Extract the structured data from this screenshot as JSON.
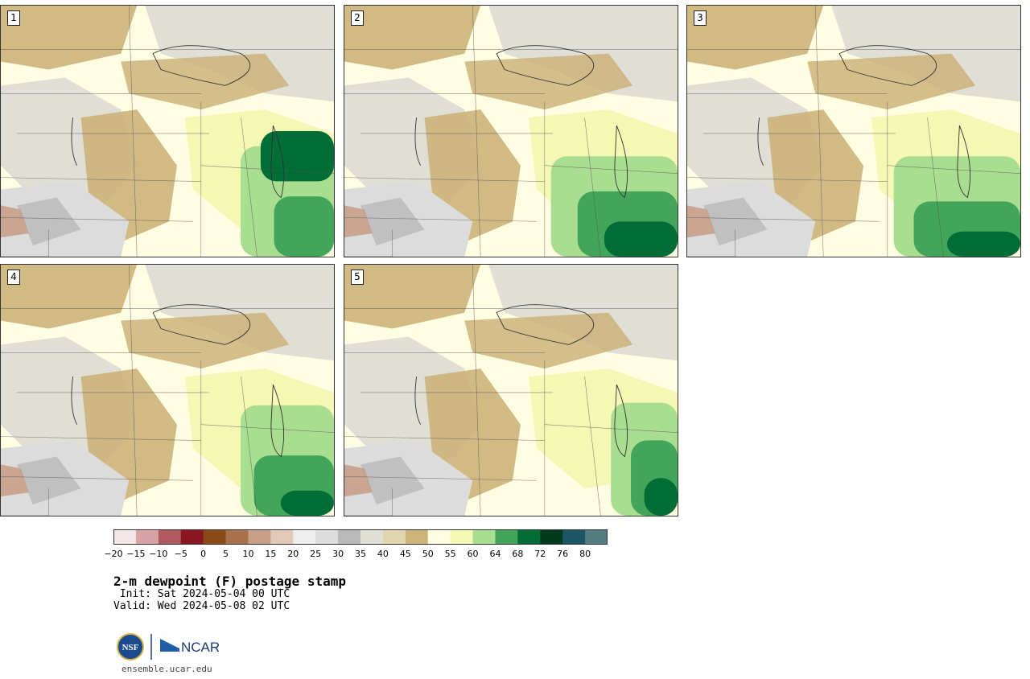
{
  "panels": [
    {
      "number": "1",
      "greens": [
        [
          0.72,
          0.56,
          0.28,
          0.44
        ],
        [
          0.82,
          0.76,
          0.18,
          0.24
        ],
        [
          0.78,
          0.5,
          0.22,
          0.2
        ]
      ]
    },
    {
      "number": "2",
      "greens": [
        [
          0.62,
          0.6,
          0.38,
          0.4
        ],
        [
          0.7,
          0.74,
          0.3,
          0.26
        ],
        [
          0.78,
          0.86,
          0.22,
          0.14
        ]
      ]
    },
    {
      "number": "3",
      "greens": [
        [
          0.62,
          0.6,
          0.38,
          0.4
        ],
        [
          0.68,
          0.78,
          0.32,
          0.22
        ],
        [
          0.78,
          0.9,
          0.22,
          0.1
        ]
      ]
    },
    {
      "number": "4",
      "greens": [
        [
          0.72,
          0.56,
          0.28,
          0.44
        ],
        [
          0.76,
          0.76,
          0.24,
          0.24
        ],
        [
          0.84,
          0.9,
          0.16,
          0.1
        ]
      ]
    },
    {
      "number": "5",
      "greens": [
        [
          0.8,
          0.55,
          0.2,
          0.45
        ],
        [
          0.86,
          0.7,
          0.14,
          0.3
        ],
        [
          0.9,
          0.85,
          0.1,
          0.15
        ]
      ]
    }
  ],
  "colorbar": {
    "colors": [
      "#f3e6e6",
      "#d7a3a5",
      "#b05a60",
      "#8b1520",
      "#8a4a18",
      "#a9704c",
      "#c8a08a",
      "#e2c8b6",
      "#eeeeee",
      "#dcdcdc",
      "#b9b9b9",
      "#e0dfd6",
      "#e1d5b0",
      "#ccb37a",
      "#fffde2",
      "#f5f7b4",
      "#a9dd8f",
      "#42a55a",
      "#006d36",
      "#003b1e",
      "#1c5563",
      "#517b80"
    ],
    "tick_labels": [
      "−20",
      "−15",
      "−10",
      "−5",
      "0",
      "5",
      "10",
      "15",
      "20",
      "25",
      "30",
      "35",
      "40",
      "45",
      "50",
      "55",
      "60",
      "64",
      "68",
      "72",
      "76",
      "80"
    ]
  },
  "title": "2-m dewpoint (F) postage stamp",
  "init_text": " Init: Sat 2024-05-04 00 UTC",
  "valid_text": "Valid: Wed 2024-05-08 02 UTC",
  "logo_text": "NCAR",
  "nsf_text": "NSF",
  "site_url": "ensemble.ucar.edu"
}
